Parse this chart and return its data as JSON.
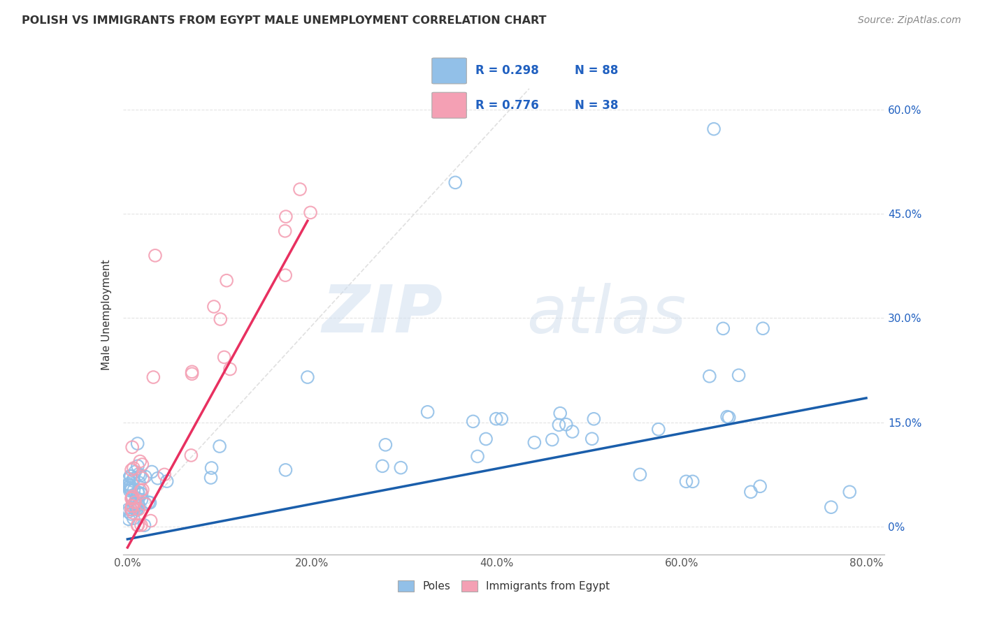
{
  "title": "POLISH VS IMMIGRANTS FROM EGYPT MALE UNEMPLOYMENT CORRELATION CHART",
  "source": "Source: ZipAtlas.com",
  "ylabel": "Male Unemployment",
  "xlim_min": -0.005,
  "xlim_max": 0.82,
  "ylim_min": -0.04,
  "ylim_max": 0.65,
  "ytick_vals": [
    0.0,
    0.15,
    0.3,
    0.45,
    0.6
  ],
  "ytick_labels": [
    "0%",
    "15.0%",
    "30.0%",
    "45.0%",
    "60.0%"
  ],
  "xtick_vals": [
    0.0,
    0.2,
    0.4,
    0.6,
    0.8
  ],
  "xtick_labels": [
    "0.0%",
    "20.0%",
    "40.0%",
    "60.0%",
    "80.0%"
  ],
  "poles_color": "#92c0e8",
  "egypt_color": "#f4a0b4",
  "poles_line_color": "#1a5eab",
  "egypt_line_color": "#e83060",
  "diag_line_color": "#dddddd",
  "poles_R": "0.298",
  "poles_N": "88",
  "egypt_R": "0.776",
  "egypt_N": "38",
  "legend_label_poles": "Poles",
  "legend_label_egypt": "Immigrants from Egypt",
  "watermark_zip": "ZIP",
  "watermark_atlas": "atlas",
  "poles_line_x0": 0.0,
  "poles_line_y0": -0.018,
  "poles_line_x1": 0.8,
  "poles_line_y1": 0.185,
  "egypt_line_x0": 0.0,
  "egypt_line_y0": -0.03,
  "egypt_line_x1": 0.195,
  "egypt_line_y1": 0.44,
  "diag_line_x0": 0.0,
  "diag_line_y0": 0.0,
  "diag_line_x1": 0.435,
  "diag_line_y1": 0.63
}
